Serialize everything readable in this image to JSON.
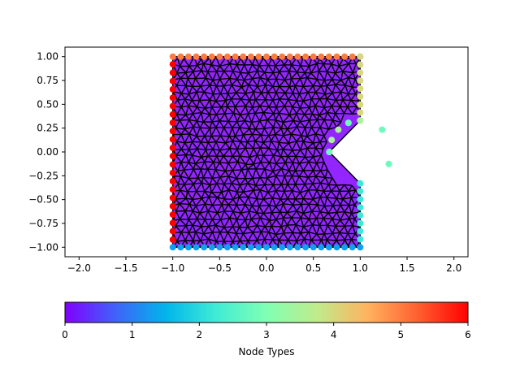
{
  "chart_data": {
    "type": "scatter",
    "title": "",
    "xlabel": "",
    "ylabel": "",
    "xlim": [
      -2.15,
      2.15
    ],
    "ylim": [
      -1.1,
      1.1
    ],
    "x_ticks": [
      -2.0,
      -1.5,
      -1.0,
      -0.5,
      0.0,
      0.5,
      1.0,
      1.5,
      2.0
    ],
    "x_tick_labels": [
      "−2.0",
      "−1.5",
      "−1.0",
      "−0.5",
      "0.0",
      "0.5",
      "1.0",
      "1.5",
      "2.0"
    ],
    "y_ticks": [
      1.0,
      0.75,
      0.5,
      0.25,
      0.0,
      -0.25,
      -0.5,
      -0.75,
      -1.0
    ],
    "y_tick_labels": [
      "1.00",
      "0.75",
      "0.50",
      "0.25",
      "0.00",
      "−0.25",
      "−0.50",
      "−0.75",
      "−1.00"
    ],
    "grid": false,
    "domain_outline": [
      [
        -1,
        -1
      ],
      [
        1,
        -1
      ],
      [
        1,
        -0.33
      ],
      [
        0.67,
        0.0
      ],
      [
        1,
        0.33
      ],
      [
        1,
        1
      ],
      [
        -1,
        1
      ]
    ],
    "boundary_groups": [
      {
        "edge": "left",
        "node_type": 6,
        "from": [
          -1,
          -0.92
        ],
        "to": [
          -1,
          0.92
        ],
        "count": 22
      },
      {
        "edge": "top",
        "node_type": 5,
        "from": [
          -1,
          1
        ],
        "to": [
          1,
          1
        ],
        "count": 25
      },
      {
        "edge": "right-upper",
        "node_type": 4,
        "from": [
          1,
          1
        ],
        "to": [
          1,
          0.33
        ],
        "count": 9
      },
      {
        "edge": "notch-upper",
        "node_type": 3.5,
        "from": [
          1,
          0.33
        ],
        "to": [
          0.67,
          0.0
        ],
        "count": 5
      },
      {
        "edge": "notch-lower",
        "node_type": 2.8,
        "from": [
          0.67,
          0.0
        ],
        "to": [
          1,
          -0.33
        ],
        "count": 5
      },
      {
        "edge": "right-lower",
        "node_type": 2.2,
        "from": [
          1,
          -0.33
        ],
        "to": [
          1,
          -1
        ],
        "count": 9
      },
      {
        "edge": "bottom",
        "node_type": 1.3,
        "from": [
          -1,
          -1
        ],
        "to": [
          1,
          -1
        ],
        "count": 25
      }
    ],
    "interior_node_type": 0,
    "colorbar": {
      "label": "Node Types",
      "orientation": "horizontal",
      "range": [
        0,
        6
      ],
      "ticks": [
        0,
        1,
        2,
        3,
        4,
        5,
        6
      ],
      "tick_labels": [
        "0",
        "1",
        "2",
        "3",
        "4",
        "5",
        "6"
      ],
      "colormap": "rainbow",
      "gradient": [
        "#8000ff",
        "#4062fa",
        "#00b5eb",
        "#40ecd4",
        "#80ffb4",
        "#c0eb8d",
        "#ffb360",
        "#ff6030",
        "#ff0000"
      ]
    }
  },
  "colors": {
    "mesh_line": "#000000",
    "axes": "#000000",
    "background": "#ffffff"
  }
}
